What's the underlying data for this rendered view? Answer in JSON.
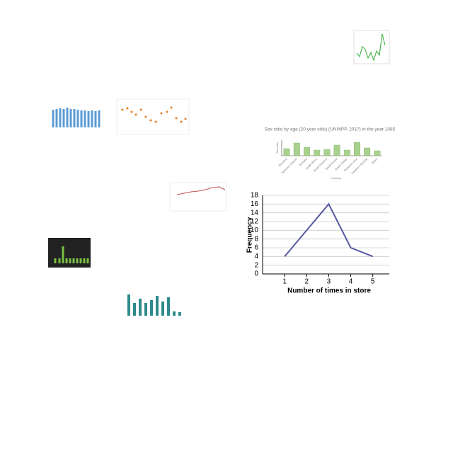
{
  "chart_data": [
    {
      "type": "line",
      "x": [
        1,
        2,
        3,
        4,
        5
      ],
      "values": [
        4,
        10,
        16,
        6,
        4
      ],
      "color": "#5458a3",
      "xlim": [
        0,
        5.75
      ],
      "xticks": [
        1,
        2,
        3,
        4,
        5
      ],
      "ylim": [
        0,
        18
      ],
      "yticks": [
        0,
        2,
        4,
        6,
        8,
        10,
        12,
        14,
        16,
        18
      ],
      "grid": true,
      "xlabel": "Number of times in store",
      "ylabel": "Frequency"
    },
    {
      "type": "bar",
      "title": "Sex ratio by age (20 year olds) (UNWPP, 2017) in the year 1985",
      "categories": [
        "Slovenia",
        "Solomon Islands",
        "Somalia",
        "South Africa",
        "South America",
        "South Korea",
        "South Sudan",
        "Southern Asia",
        "Southern Europe",
        "Spain"
      ],
      "values": [
        104,
        108,
        105,
        103,
        103.5,
        106.5,
        103,
        108.5,
        104.5,
        102.5
      ],
      "color": "#a9d18e",
      "ylim": [
        99,
        110
      ],
      "xlabel": "Country",
      "ylabel": "Sex ratio"
    }
  ]
}
